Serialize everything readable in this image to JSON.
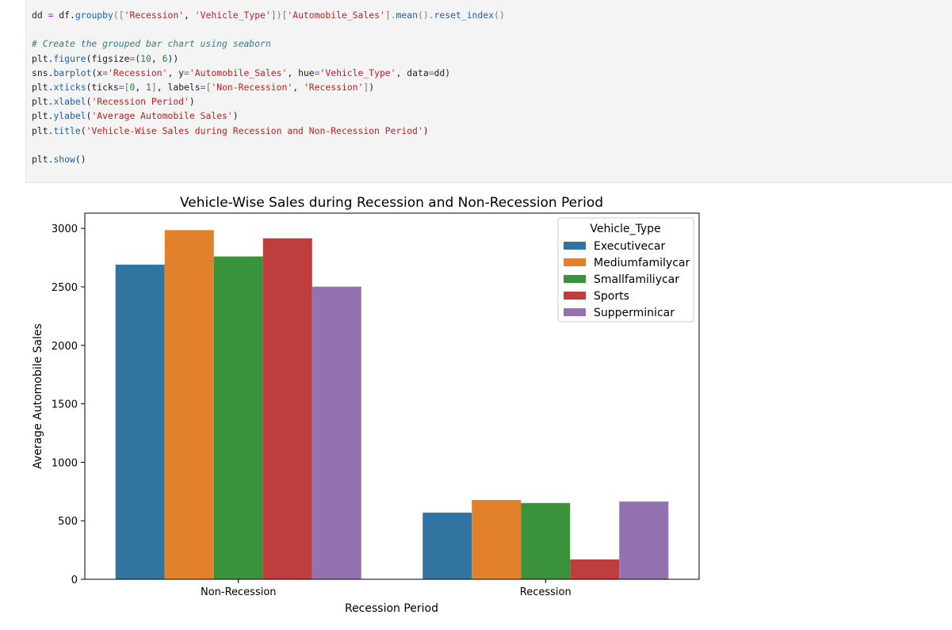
{
  "code_cell": {
    "lines": [
      [
        [
          "t",
          "dd "
        ],
        [
          "op",
          "="
        ],
        [
          "t",
          " df."
        ],
        [
          "fn",
          "groupby"
        ],
        [
          "br",
          "(["
        ],
        [
          "str",
          "'Recession'"
        ],
        [
          "t",
          ", "
        ],
        [
          "str",
          "'Vehicle_Type'"
        ],
        [
          "br",
          "])["
        ],
        [
          "str",
          "'Automobile_Sales'"
        ],
        [
          "br",
          "]."
        ],
        [
          "fn",
          "mean"
        ],
        [
          "br",
          "()."
        ],
        [
          "fn",
          "reset_index"
        ],
        [
          "br",
          "()"
        ]
      ],
      [],
      [
        [
          "com",
          "# Create the grouped bar chart using seaborn"
        ]
      ],
      [
        [
          "t",
          "plt."
        ],
        [
          "fn",
          "figure"
        ],
        [
          "t",
          "(figsize"
        ],
        [
          "op",
          "="
        ],
        [
          "t",
          "("
        ],
        [
          "num",
          "10"
        ],
        [
          "t",
          ", "
        ],
        [
          "num",
          "6"
        ],
        [
          "t",
          "))"
        ]
      ],
      [
        [
          "t",
          "sns."
        ],
        [
          "fn",
          "barplot"
        ],
        [
          "t",
          "(x"
        ],
        [
          "op",
          "="
        ],
        [
          "str",
          "'Recession'"
        ],
        [
          "t",
          ", y"
        ],
        [
          "op",
          "="
        ],
        [
          "str",
          "'Automobile_Sales'"
        ],
        [
          "t",
          ", hue"
        ],
        [
          "op",
          "="
        ],
        [
          "str",
          "'Vehicle_Type'"
        ],
        [
          "t",
          ", data"
        ],
        [
          "op",
          "="
        ],
        [
          "t",
          "dd)"
        ]
      ],
      [
        [
          "t",
          "plt."
        ],
        [
          "fn",
          "xticks"
        ],
        [
          "t",
          "(ticks"
        ],
        [
          "op",
          "="
        ],
        [
          "br",
          "["
        ],
        [
          "num",
          "0"
        ],
        [
          "t",
          ", "
        ],
        [
          "num",
          "1"
        ],
        [
          "br",
          "]"
        ],
        [
          "t",
          ", labels"
        ],
        [
          "op",
          "="
        ],
        [
          "br",
          "["
        ],
        [
          "str",
          "'Non-Recession'"
        ],
        [
          "t",
          ", "
        ],
        [
          "str",
          "'Recession'"
        ],
        [
          "br",
          "]"
        ],
        [
          "t",
          ")"
        ]
      ],
      [
        [
          "t",
          "plt."
        ],
        [
          "fn",
          "xlabel"
        ],
        [
          "t",
          "("
        ],
        [
          "str",
          "'Recession Period'"
        ],
        [
          "t",
          ")"
        ]
      ],
      [
        [
          "t",
          "plt."
        ],
        [
          "fn",
          "ylabel"
        ],
        [
          "t",
          "("
        ],
        [
          "str",
          "'Average Automobile Sales'"
        ],
        [
          "t",
          ")"
        ]
      ],
      [
        [
          "t",
          "plt."
        ],
        [
          "fn",
          "title"
        ],
        [
          "t",
          "("
        ],
        [
          "str",
          "'Vehicle-Wise Sales during Recession and Non-Recession Period'"
        ],
        [
          "t",
          ")"
        ]
      ],
      [],
      [
        [
          "t",
          "plt."
        ],
        [
          "fn",
          "show"
        ],
        [
          "t",
          "()"
        ]
      ]
    ]
  },
  "chart_data": {
    "type": "bar",
    "title": "Vehicle-Wise Sales during Recession and Non-Recession Period",
    "xlabel": "Recession Period",
    "ylabel": "Average Automobile Sales",
    "categories": [
      "Non-Recession",
      "Recession"
    ],
    "ylim": [
      0,
      3130
    ],
    "yticks": [
      0,
      500,
      1000,
      1500,
      2000,
      2500,
      3000
    ],
    "legend": {
      "title": "Vehicle_Type",
      "placement": "top-right"
    },
    "series": [
      {
        "name": "Executivecar",
        "color": "#3274a1",
        "values": [
          2690,
          570
        ]
      },
      {
        "name": "Mediumfamilycar",
        "color": "#e1812c",
        "values": [
          2985,
          678
        ]
      },
      {
        "name": "Smallfamiliycar",
        "color": "#3a923a",
        "values": [
          2760,
          652
        ]
      },
      {
        "name": "Sports",
        "color": "#c03d3e",
        "values": [
          2915,
          170
        ]
      },
      {
        "name": "Supperminicar",
        "color": "#9372b2",
        "values": [
          2502,
          665
        ]
      }
    ]
  }
}
